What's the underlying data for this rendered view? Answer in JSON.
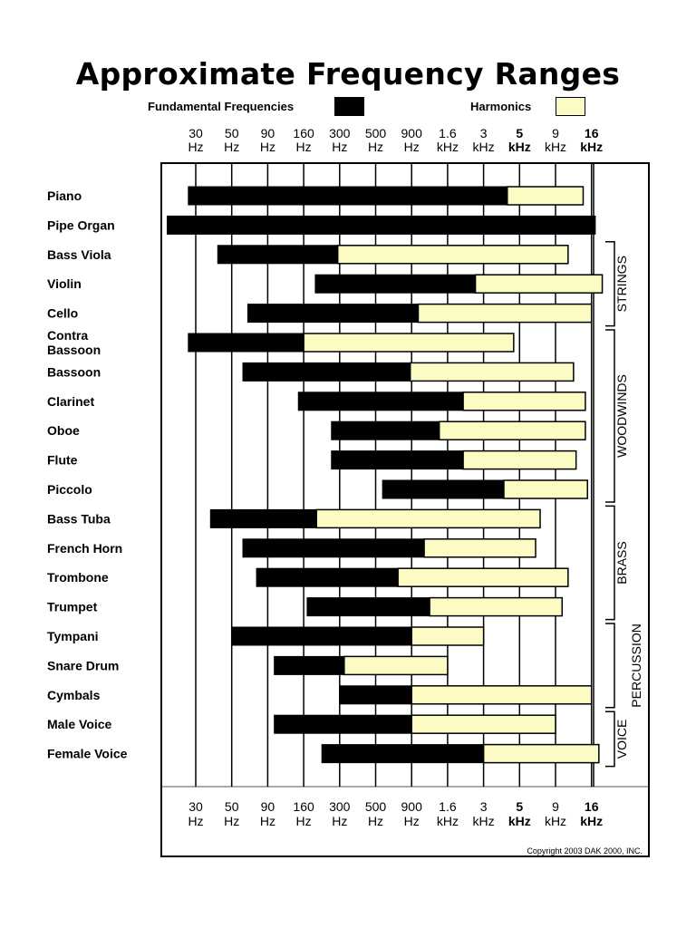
{
  "title": "Approximate Frequency Ranges",
  "legend": {
    "fundamental_label": "Fundamental Frequencies",
    "harmonics_label": "Harmonics",
    "fundamental_color": "#000000",
    "harmonics_color": "#fdfbc4"
  },
  "copyright": "Copyright 2003 DAK 2000, INC.",
  "chart_data": {
    "type": "bar",
    "orientation": "horizontal-range",
    "x_scale": "log",
    "x_unit": "Hz",
    "tick_values": [
      30,
      50,
      90,
      160,
      300,
      500,
      900,
      1600,
      3000,
      5000,
      9000,
      16000
    ],
    "ticks": [
      {
        "top": "30",
        "bottom": "Hz",
        "bold": false
      },
      {
        "top": "50",
        "bottom": "Hz",
        "bold": false
      },
      {
        "top": "90",
        "bottom": "Hz",
        "bold": false
      },
      {
        "top": "160",
        "bottom": "Hz",
        "bold": false
      },
      {
        "top": "300",
        "bottom": "Hz",
        "bold": false
      },
      {
        "top": "500",
        "bottom": "Hz",
        "bold": false
      },
      {
        "top": "900",
        "bottom": "Hz",
        "bold": false
      },
      {
        "top": "1.6",
        "bottom": "kHz",
        "bold": false
      },
      {
        "top": "3",
        "bottom": "kHz",
        "bold": false
      },
      {
        "top": "5",
        "bottom": "kHz",
        "bold": true
      },
      {
        "top": "9",
        "bottom": "kHz",
        "bold": false
      },
      {
        "top": "16",
        "bottom": "kHz",
        "bold": true
      }
    ],
    "series": [
      {
        "name": "Fundamental Frequencies",
        "color": "#000000"
      },
      {
        "name": "Harmonics",
        "color": "#fdfbc4"
      }
    ],
    "instruments": [
      {
        "name": [
          "Piano"
        ],
        "fundamental": [
          27,
          4200
        ],
        "harmonics": [
          4200,
          14000
        ]
      },
      {
        "name": [
          "Pipe Organ"
        ],
        "fundamental": [
          20,
          17000
        ],
        "harmonics": null
      },
      {
        "name": [
          "Bass Viola"
        ],
        "fundamental": [
          41,
          290
        ],
        "harmonics": [
          290,
          11000
        ]
      },
      {
        "name": [
          "Violin"
        ],
        "fundamental": [
          196,
          2600
        ],
        "harmonics": [
          2600,
          19000
        ]
      },
      {
        "name": [
          "Cello"
        ],
        "fundamental": [
          65,
          1000
        ],
        "harmonics": [
          1000,
          16000
        ]
      },
      {
        "name": [
          "Contra",
          "Bassoon"
        ],
        "fundamental": [
          27,
          160
        ],
        "harmonics": [
          160,
          4600
        ]
      },
      {
        "name": [
          "Bassoon"
        ],
        "fundamental": [
          60,
          880
        ],
        "harmonics": [
          880,
          12000
        ]
      },
      {
        "name": [
          "Clarinet"
        ],
        "fundamental": [
          147,
          2100
        ],
        "harmonics": [
          2100,
          14500
        ]
      },
      {
        "name": [
          "Oboe"
        ],
        "fundamental": [
          260,
          1400
        ],
        "harmonics": [
          1400,
          14500
        ]
      },
      {
        "name": [
          "Flute"
        ],
        "fundamental": [
          260,
          2100
        ],
        "harmonics": [
          2100,
          12500
        ]
      },
      {
        "name": [
          "Piccolo"
        ],
        "fundamental": [
          560,
          4000
        ],
        "harmonics": [
          4000,
          15000
        ]
      },
      {
        "name": [
          "Bass Tuba"
        ],
        "fundamental": [
          37,
          200
        ],
        "harmonics": [
          200,
          7000
        ]
      },
      {
        "name": [
          "French Horn"
        ],
        "fundamental": [
          60,
          1100
        ],
        "harmonics": [
          1100,
          6500
        ]
      },
      {
        "name": [
          "Trombone"
        ],
        "fundamental": [
          75,
          720
        ],
        "harmonics": [
          720,
          11000
        ]
      },
      {
        "name": [
          "Trumpet"
        ],
        "fundamental": [
          170,
          1200
        ],
        "harmonics": [
          1200,
          10000
        ]
      },
      {
        "name": [
          "Tympani"
        ],
        "fundamental": [
          50,
          900
        ],
        "harmonics": [
          900,
          3000
        ]
      },
      {
        "name": [
          "Snare Drum"
        ],
        "fundamental": [
          100,
          320
        ],
        "harmonics": [
          320,
          1600
        ]
      },
      {
        "name": [
          "Cymbals"
        ],
        "fundamental": [
          300,
          900
        ],
        "harmonics": [
          900,
          16000
        ]
      },
      {
        "name": [
          "Male Voice"
        ],
        "fundamental": [
          100,
          900
        ],
        "harmonics": [
          900,
          9000
        ]
      },
      {
        "name": [
          "Female Voice"
        ],
        "fundamental": [
          220,
          3000
        ],
        "harmonics": [
          3000,
          18000
        ]
      }
    ],
    "groups": [
      {
        "label": "STRINGS",
        "from": 2,
        "to": 4
      },
      {
        "label": "WOODWINDS",
        "from": 5,
        "to": 10
      },
      {
        "label": "BRASS",
        "from": 11,
        "to": 14
      },
      {
        "label": "PERCUSSION",
        "from": 15,
        "to": 17
      },
      {
        "label": "VOICE",
        "from": 18,
        "to": 19
      }
    ]
  }
}
